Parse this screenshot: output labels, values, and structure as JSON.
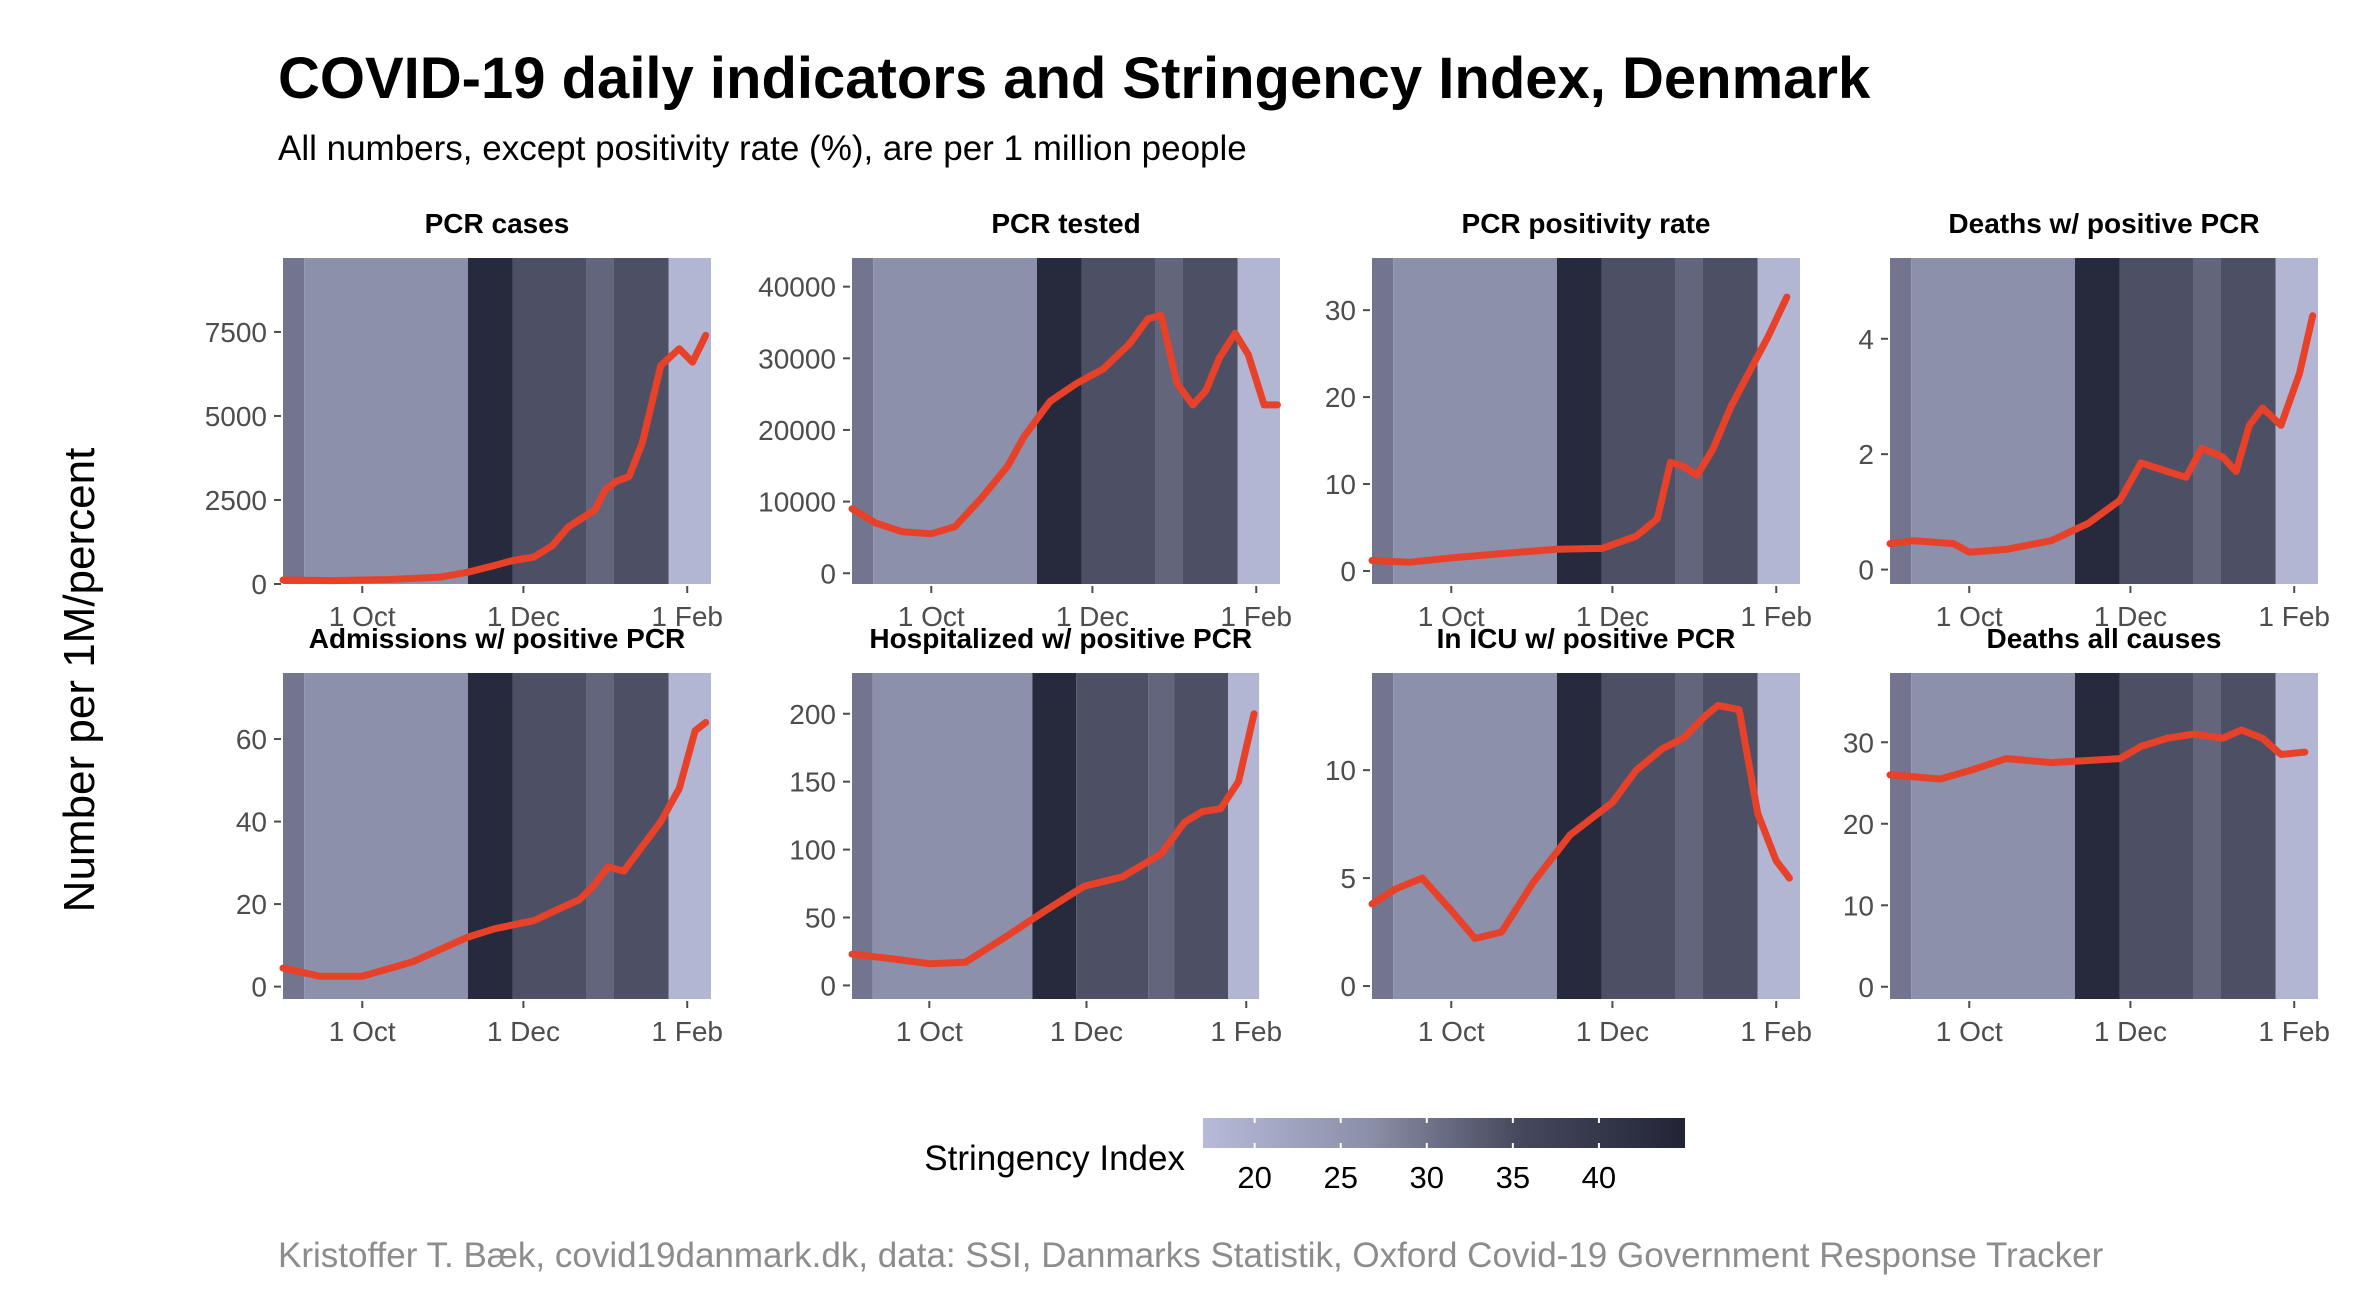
{
  "title": "COVID-19 daily indicators and Stringency Index, Denmark",
  "subtitle": "All numbers, except positivity rate (%), are per 1 million people",
  "ylabel": "Number per 1M/percent",
  "caption": "Kristoffer T. Bæk, covid19danmark.dk, data: SSI, Danmarks Statistik, Oxford Covid-19 Government Response Tracker",
  "colors": {
    "series": "#e8412a",
    "raw_series": "#ef6f5a"
  },
  "legend": {
    "title": "Stringency Index",
    "ticks": [
      20,
      25,
      30,
      35,
      40
    ],
    "range": [
      17,
      45
    ],
    "low_color": "#b7bbd9",
    "high_color": "#222436"
  },
  "time_axis": {
    "start": "2020-09-01",
    "end": "2021-02-10",
    "ticks": [
      {
        "date": "2020-10-01",
        "label": "1 Oct"
      },
      {
        "date": "2020-12-01",
        "label": "1 Dec"
      },
      {
        "date": "2021-02-01",
        "label": "1 Feb"
      }
    ]
  },
  "stringency_periods": [
    {
      "start": "2020-09-01",
      "end": "2020-09-09",
      "value": 30
    },
    {
      "start": "2020-09-09",
      "end": "2020-11-10",
      "value": 25
    },
    {
      "start": "2020-11-10",
      "end": "2020-11-27",
      "value": 44
    },
    {
      "start": "2020-11-27",
      "end": "2020-12-25",
      "value": 37
    },
    {
      "start": "2020-12-25",
      "end": "2021-01-04",
      "value": 33
    },
    {
      "start": "2021-01-04",
      "end": "2021-01-25",
      "value": 37
    },
    {
      "start": "2021-01-25",
      "end": "2021-02-10",
      "value": 18
    }
  ],
  "chart_data": [
    {
      "type": "line",
      "title": "PCR cases",
      "ylim": [
        0,
        9700
      ],
      "yticks": [
        0,
        2500,
        5000,
        7500
      ],
      "x_end": "2021-02-10",
      "series": [
        {
          "x": [
            "2020-09-01",
            "2020-09-20",
            "2020-10-10",
            "2020-10-30",
            "2020-11-10",
            "2020-11-20",
            "2020-11-27",
            "2020-12-05",
            "2020-12-12",
            "2020-12-18",
            "2020-12-23",
            "2020-12-28",
            "2021-01-01",
            "2021-01-05",
            "2021-01-10",
            "2021-01-15",
            "2021-01-22",
            "2021-01-29",
            "2021-02-03",
            "2021-02-08"
          ],
          "y": [
            120,
            100,
            130,
            200,
            350,
            550,
            700,
            800,
            1150,
            1700,
            1950,
            2200,
            2800,
            3050,
            3200,
            4200,
            6500,
            7000,
            6600,
            7400
          ]
        }
      ]
    },
    {
      "type": "line",
      "title": "PCR tested",
      "ylim": [
        -1500,
        44000
      ],
      "yticks": [
        0,
        10000,
        20000,
        30000,
        40000
      ],
      "x_end": "2021-02-10",
      "series": [
        {
          "x": [
            "2020-09-01",
            "2020-09-10",
            "2020-09-20",
            "2020-10-01",
            "2020-10-10",
            "2020-10-20",
            "2020-10-30",
            "2020-11-05",
            "2020-11-15",
            "2020-11-25",
            "2020-12-05",
            "2020-12-15",
            "2020-12-22",
            "2020-12-27",
            "2021-01-02",
            "2021-01-08",
            "2021-01-13",
            "2021-01-18",
            "2021-01-24",
            "2021-01-29",
            "2021-02-04",
            "2021-02-09"
          ],
          "y": [
            9000,
            7000,
            5800,
            5500,
            6500,
            10500,
            15000,
            19000,
            24000,
            26500,
            28500,
            32000,
            35500,
            36000,
            26500,
            23500,
            25500,
            30000,
            33500,
            30500,
            23500,
            23500
          ]
        }
      ]
    },
    {
      "type": "line",
      "title": "PCR positivity rate",
      "ylim": [
        -1.5,
        36
      ],
      "yticks": [
        0,
        10,
        20,
        30
      ],
      "x_end": "2021-02-10",
      "series": [
        {
          "x": [
            "2020-09-01",
            "2020-09-15",
            "2020-10-01",
            "2020-10-20",
            "2020-11-10",
            "2020-11-27",
            "2020-12-10",
            "2020-12-18",
            "2020-12-23",
            "2020-12-28",
            "2021-01-02",
            "2021-01-08",
            "2021-01-15",
            "2021-01-22",
            "2021-01-29",
            "2021-02-05"
          ],
          "y": [
            1.2,
            1.0,
            1.5,
            2.0,
            2.5,
            2.6,
            4.0,
            6.0,
            12.5,
            12.0,
            11.0,
            14.0,
            19.0,
            23.0,
            27.0,
            31.5
          ]
        }
      ]
    },
    {
      "type": "line",
      "title": "Deaths w/ positive PCR",
      "ylim": [
        -0.25,
        5.4
      ],
      "yticks": [
        0,
        2,
        4
      ],
      "x_end": "2021-02-10",
      "series": [
        {
          "x": [
            "2020-09-01",
            "2020-09-10",
            "2020-09-25",
            "2020-10-01",
            "2020-10-15",
            "2020-11-01",
            "2020-11-15",
            "2020-11-27",
            "2020-12-05",
            "2020-12-15",
            "2020-12-22",
            "2020-12-28",
            "2021-01-05",
            "2021-01-10",
            "2021-01-15",
            "2021-01-20",
            "2021-01-27",
            "2021-02-03",
            "2021-02-08"
          ],
          "y": [
            0.45,
            0.5,
            0.45,
            0.3,
            0.35,
            0.5,
            0.8,
            1.2,
            1.85,
            1.7,
            1.6,
            2.1,
            1.95,
            1.7,
            2.5,
            2.8,
            2.5,
            3.4,
            4.4
          ]
        }
      ]
    },
    {
      "type": "line",
      "title": "Admissions w/ positive PCR",
      "ylim": [
        -3,
        76
      ],
      "yticks": [
        0,
        20,
        40,
        60
      ],
      "x_end": "2021-02-10",
      "series": [
        {
          "x": [
            "2020-09-01",
            "2020-09-15",
            "2020-10-01",
            "2020-10-20",
            "2020-11-10",
            "2020-11-20",
            "2020-12-05",
            "2020-12-15",
            "2020-12-22",
            "2020-12-27",
            "2021-01-02",
            "2021-01-08",
            "2021-01-15",
            "2021-01-22",
            "2021-01-29",
            "2021-02-04",
            "2021-02-08"
          ],
          "y": [
            4.5,
            2.5,
            2.5,
            6,
            12,
            14,
            16,
            19,
            21,
            24,
            29,
            28,
            34,
            40,
            48,
            62,
            64
          ]
        }
      ]
    },
    {
      "type": "line",
      "title": "Hospitalized w/ positive PCR",
      "ylim": [
        -10,
        230
      ],
      "yticks": [
        0,
        50,
        100,
        150,
        200
      ],
      "x_end": "2021-02-06",
      "series": [
        {
          "x": [
            "2020-09-01",
            "2020-09-15",
            "2020-10-01",
            "2020-10-15",
            "2020-10-30",
            "2020-11-15",
            "2020-11-30",
            "2020-12-15",
            "2020-12-30",
            "2021-01-08",
            "2021-01-15",
            "2021-01-22",
            "2021-01-29",
            "2021-02-04"
          ],
          "y": [
            23,
            20,
            16,
            17,
            35,
            55,
            73,
            80,
            97,
            120,
            128,
            130,
            150,
            200
          ]
        }
      ]
    },
    {
      "type": "line",
      "title": "In ICU w/ positive PCR",
      "ylim": [
        -0.6,
        14.5
      ],
      "yticks": [
        0,
        5,
        10
      ],
      "x_end": "2021-02-10",
      "series": [
        {
          "x": [
            "2020-09-01",
            "2020-09-10",
            "2020-09-20",
            "2020-10-01",
            "2020-10-10",
            "2020-10-20",
            "2020-11-01",
            "2020-11-15",
            "2020-12-01",
            "2020-12-10",
            "2020-12-20",
            "2020-12-28",
            "2021-01-05",
            "2021-01-10",
            "2021-01-18",
            "2021-01-25",
            "2021-02-01",
            "2021-02-06"
          ],
          "y": [
            3.8,
            4.5,
            5.0,
            3.5,
            2.2,
            2.5,
            4.8,
            7.0,
            8.5,
            10.0,
            11.0,
            11.5,
            12.5,
            13.0,
            12.8,
            8.0,
            5.8,
            5.0
          ]
        }
      ]
    },
    {
      "type": "line",
      "title": "Deaths all causes",
      "ylim": [
        -1.5,
        38.5
      ],
      "yticks": [
        0,
        10,
        20,
        30
      ],
      "x_end": "2021-02-10",
      "series": [
        {
          "x": [
            "2020-09-01",
            "2020-09-20",
            "2020-10-01",
            "2020-10-15",
            "2020-11-01",
            "2020-11-27",
            "2020-12-05",
            "2020-12-15",
            "2020-12-25",
            "2021-01-05",
            "2021-01-12",
            "2021-01-20",
            "2021-01-27",
            "2021-02-05"
          ],
          "y": [
            26,
            25.5,
            26.5,
            28,
            27.5,
            28,
            29.5,
            30.5,
            31,
            30.5,
            31.5,
            30.5,
            28.5,
            28.8
          ]
        }
      ]
    }
  ]
}
